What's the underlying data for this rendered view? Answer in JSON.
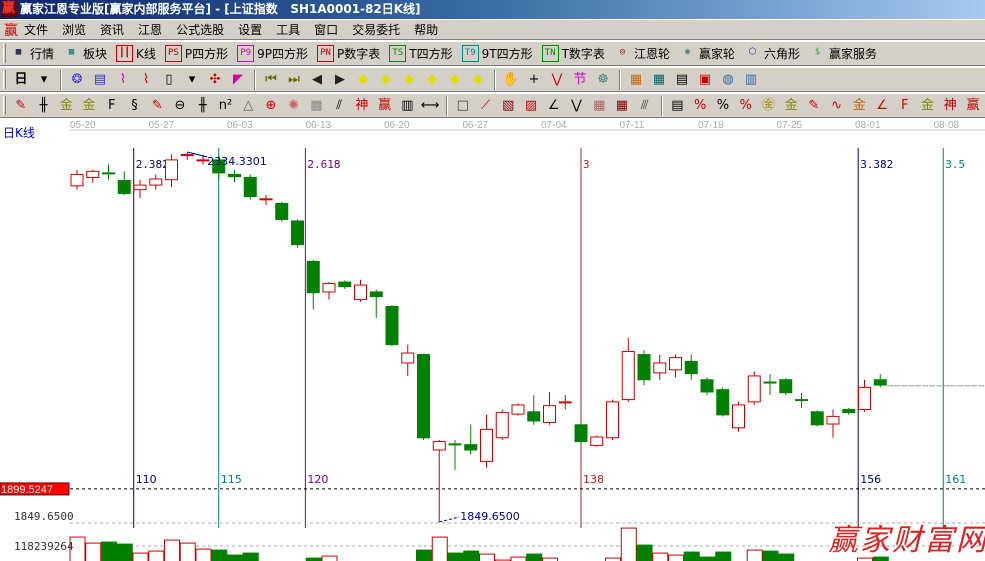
{
  "title": "赢家江恩专业版[赢家内部服务平台] - [上证指数   SH1A0001-82日K线]",
  "menu": {
    "logo": "赢",
    "items": [
      "文件",
      "浏览",
      "资讯",
      "江恩",
      "公式选股",
      "设置",
      "工具",
      "窗口",
      "交易委托",
      "帮助"
    ]
  },
  "toolbar1": [
    {
      "icon": "quote-grid-icon",
      "glyph": "▦",
      "color": "#003",
      "label": "行情"
    },
    {
      "icon": "blocks-icon",
      "glyph": "▩",
      "color": "#088",
      "label": "板块"
    },
    {
      "icon": "candles-icon",
      "glyph": "┃┃",
      "color": "#c00",
      "label": "K线"
    },
    {
      "icon": "ps-icon",
      "glyph": "PS",
      "color": "#c00",
      "label": "P四方形"
    },
    {
      "icon": "p9-icon",
      "glyph": "P9",
      "color": "#c0c",
      "label": "9P四方形"
    },
    {
      "icon": "pn-icon",
      "glyph": "PN",
      "color": "#c00",
      "label": "P数字表"
    },
    {
      "icon": "ts-icon",
      "glyph": "TS",
      "color": "#080",
      "label": "T四方形"
    },
    {
      "icon": "t9-icon",
      "glyph": "T9",
      "color": "#088",
      "label": "9T四方形"
    },
    {
      "icon": "tn-icon",
      "glyph": "TN",
      "color": "#080",
      "label": "T数字表"
    },
    {
      "icon": "gann-wheel-icon",
      "glyph": "◎",
      "color": "#800",
      "label": "江恩轮"
    },
    {
      "icon": "winner-wheel-icon",
      "glyph": "◉",
      "color": "#488",
      "label": "赢家轮"
    },
    {
      "icon": "hexagon-icon",
      "glyph": "⬡",
      "color": "#33c",
      "label": "六角形"
    },
    {
      "icon": "dollar-icon",
      "glyph": "$",
      "color": "#4a4",
      "label": "赢家服务"
    }
  ],
  "toolbar2": {
    "period": "日",
    "icons": [
      {
        "name": "period-dropdown-icon",
        "glyph": "▾",
        "color": "#000"
      },
      {
        "name": "sep"
      },
      {
        "name": "pattern-icon",
        "glyph": "❂",
        "color": "#33c"
      },
      {
        "name": "document-icon",
        "glyph": "▤",
        "color": "#33c"
      },
      {
        "name": "steps-3-icon",
        "glyph": "⌇",
        "color": "#c0c"
      },
      {
        "name": "steps-9-icon",
        "glyph": "⌇",
        "color": "#c00"
      },
      {
        "name": "candle-type-icon",
        "glyph": "▯",
        "color": "#000"
      },
      {
        "name": "candle-type-dropdown-icon",
        "glyph": "▾",
        "color": "#000"
      },
      {
        "name": "style-icon",
        "glyph": "✣",
        "color": "#c00"
      },
      {
        "name": "flag-icon",
        "glyph": "◤",
        "color": "#c0a"
      },
      {
        "name": "sep"
      },
      {
        "name": "first-icon",
        "glyph": "⏮",
        "color": "#660"
      },
      {
        "name": "last-icon",
        "glyph": "⏭",
        "color": "#660"
      },
      {
        "name": "prev-icon",
        "glyph": "◀",
        "color": "#222"
      },
      {
        "name": "next-icon",
        "glyph": "▶",
        "color": "#222"
      },
      {
        "name": "move-left-icon",
        "glyph": "◆",
        "color": "#dd0"
      },
      {
        "name": "move-right-icon",
        "glyph": "◆",
        "color": "#dd0"
      },
      {
        "name": "expand-h-icon",
        "glyph": "◆",
        "color": "#dd0"
      },
      {
        "name": "shrink-h-icon",
        "glyph": "◆",
        "color": "#dd0"
      },
      {
        "name": "expand-all-icon",
        "glyph": "◆",
        "color": "#dd0"
      },
      {
        "name": "expand-v-icon",
        "glyph": "◆",
        "color": "#dd0"
      },
      {
        "name": "sep"
      },
      {
        "name": "hand-icon",
        "glyph": "✋",
        "color": "#000"
      },
      {
        "name": "crosshair-icon",
        "glyph": "+",
        "color": "#000"
      },
      {
        "name": "zigzag-icon",
        "glyph": "⋁",
        "color": "#c00"
      },
      {
        "name": "node-icon",
        "glyph": "节",
        "color": "#c0c"
      },
      {
        "name": "brain-icon",
        "glyph": "☸",
        "color": "#488"
      },
      {
        "name": "sep"
      },
      {
        "name": "calendar-icon",
        "glyph": "▦",
        "color": "#c60"
      },
      {
        "name": "calculator-icon",
        "glyph": "▦",
        "color": "#066"
      },
      {
        "name": "report-icon",
        "glyph": "▤",
        "color": "#000"
      },
      {
        "name": "save-icon",
        "glyph": "▣",
        "color": "#c00"
      },
      {
        "name": "network-icon",
        "glyph": "◍",
        "color": "#36a"
      },
      {
        "name": "computer-icon",
        "glyph": "▥",
        "color": "#36a"
      }
    ]
  },
  "toolbar3": [
    {
      "name": "pen-icon",
      "glyph": "✎",
      "color": "#c00"
    },
    {
      "name": "parallel-lines-icon",
      "glyph": "╫",
      "color": "#000"
    },
    {
      "name": "gold-lines-icon",
      "glyph": "金",
      "color": "#880"
    },
    {
      "name": "gold-lines-2-icon",
      "glyph": "金",
      "color": "#880"
    },
    {
      "name": "f-lines-icon",
      "glyph": "F",
      "color": "#000"
    },
    {
      "name": "spiral-lines-icon",
      "glyph": "§",
      "color": "#000"
    },
    {
      "name": "pen-ruler-icon",
      "glyph": "✎",
      "color": "#c00"
    },
    {
      "name": "circle-ruler-icon",
      "glyph": "⊖",
      "color": "#000"
    },
    {
      "name": "grid-lines-icon",
      "glyph": "╫",
      "color": "#000"
    },
    {
      "name": "n-square-icon",
      "glyph": "n²",
      "color": "#000"
    },
    {
      "name": "triangle-icon",
      "glyph": "△",
      "color": "#666"
    },
    {
      "name": "target-icon",
      "glyph": "⊕",
      "color": "#c00"
    },
    {
      "name": "star-burst-icon",
      "glyph": "✺",
      "color": "#c66"
    },
    {
      "name": "web-icon",
      "glyph": "▩",
      "color": "#888"
    },
    {
      "name": "angle-lines-icon",
      "glyph": "⫽",
      "color": "#000"
    },
    {
      "name": "shen-icon",
      "glyph": "神",
      "color": "#c00"
    },
    {
      "name": "ying-icon",
      "glyph": "赢",
      "color": "#c00"
    },
    {
      "name": "ruler-123-icon",
      "glyph": "▥",
      "color": "#000"
    },
    {
      "name": "width-icon",
      "glyph": "⟷",
      "color": "#000"
    },
    {
      "name": "sep"
    },
    {
      "name": "box-icon",
      "glyph": "□",
      "color": "#444"
    },
    {
      "name": "fan-icon",
      "glyph": "⟋",
      "color": "#c00"
    },
    {
      "name": "fan-box-icon",
      "glyph": "▧",
      "color": "#800"
    },
    {
      "name": "fan-box-2-icon",
      "glyph": "▨",
      "color": "#c00"
    },
    {
      "name": "angle-fan-icon",
      "glyph": "∠",
      "color": "#000"
    },
    {
      "name": "v-lines-icon",
      "glyph": "⋁",
      "color": "#000"
    },
    {
      "name": "grid-box-icon",
      "glyph": "▦",
      "color": "#a66"
    },
    {
      "name": "grid-box-2-icon",
      "glyph": "▦",
      "color": "#800"
    },
    {
      "name": "hatch-icon",
      "glyph": "⫻",
      "color": "#444"
    },
    {
      "name": "sep"
    },
    {
      "name": "bars-icon",
      "glyph": "▤",
      "color": "#000"
    },
    {
      "name": "percent-line-icon",
      "glyph": "%",
      "color": "#c00"
    },
    {
      "name": "percent-icon",
      "glyph": "%",
      "color": "#000"
    },
    {
      "name": "percent-lines-icon",
      "glyph": "%",
      "color": "#c00"
    },
    {
      "name": "gold-circle-icon",
      "glyph": "㊎",
      "color": "#a80"
    },
    {
      "name": "gold-lines-3-icon",
      "glyph": "金",
      "color": "#880"
    },
    {
      "name": "pen-lines-icon",
      "glyph": "✎",
      "color": "#c00"
    },
    {
      "name": "wave-icon",
      "glyph": "∿",
      "color": "#c00"
    },
    {
      "name": "gold-red-icon",
      "glyph": "金",
      "color": "#c60"
    },
    {
      "name": "j-angle-icon",
      "glyph": "∠",
      "color": "#c00"
    },
    {
      "name": "f-angle-icon",
      "glyph": "F",
      "color": "#c00"
    },
    {
      "name": "gold-angle-icon",
      "glyph": "金",
      "color": "#880"
    },
    {
      "name": "shen-angle-icon",
      "glyph": "神",
      "color": "#c00"
    },
    {
      "name": "ying-angle-icon",
      "glyph": "赢",
      "color": "#c00"
    }
  ],
  "chart_label": "日K线",
  "watermark": "赢家财富网",
  "colors": {
    "up": "#cc0000",
    "down": "#008000",
    "axis_text": "#aaaaaa",
    "price_tag": "#ff0000"
  },
  "chart_data": {
    "type": "candlestick",
    "date_ticks": [
      "05-20",
      "05-27",
      "06-03",
      "06-13",
      "06-20",
      "06-27",
      "07-04",
      "07-11",
      "07-18",
      "07-25",
      "08-01",
      "08-08"
    ],
    "candles": [
      [
        2290,
        2311,
        2285,
        2305
      ],
      [
        2301,
        2311,
        2294,
        2309
      ],
      [
        2307,
        2318,
        2298,
        2306
      ],
      [
        2297,
        2309,
        2278,
        2280
      ],
      [
        2285,
        2298,
        2274,
        2291
      ],
      [
        2291,
        2305,
        2285,
        2299
      ],
      [
        2298,
        2331,
        2288,
        2324
      ],
      [
        2330,
        2334.33,
        2324,
        2331
      ],
      [
        2323,
        2331,
        2318,
        2324
      ],
      [
        2324,
        2331,
        2298,
        2307
      ],
      [
        2305,
        2311,
        2295,
        2302
      ],
      [
        2301,
        2305,
        2272,
        2276
      ],
      [
        2272,
        2278,
        2265,
        2273
      ],
      [
        2267,
        2269,
        2243,
        2246
      ],
      [
        2244,
        2246,
        2209,
        2213
      ],
      [
        2191,
        2193,
        2128,
        2150
      ],
      [
        2151,
        2164,
        2141,
        2162
      ],
      [
        2164,
        2166,
        2155,
        2158
      ],
      [
        2141,
        2167,
        2138,
        2160
      ],
      [
        2151,
        2154,
        2117,
        2145
      ],
      [
        2132,
        2134,
        2080,
        2082
      ],
      [
        2058,
        2082,
        2041,
        2071
      ],
      [
        2069,
        2070,
        1957,
        1960
      ],
      [
        1944,
        1957,
        1849.65,
        1955
      ],
      [
        1952,
        1957,
        1918,
        1951
      ],
      [
        1951,
        1977,
        1938,
        1944
      ],
      [
        1929,
        1990,
        1921,
        1971
      ],
      [
        1960,
        1997,
        1957,
        1993
      ],
      [
        1991,
        2005,
        1989,
        2003
      ],
      [
        1994,
        2016,
        1977,
        1982
      ],
      [
        1980,
        2020,
        1977,
        2002
      ],
      [
        2006,
        2016,
        1997,
        2007
      ],
      [
        1977,
        1981,
        1951,
        1955
      ],
      [
        1950,
        1963,
        1948,
        1961
      ],
      [
        1960,
        2010,
        1957,
        2007
      ],
      [
        2010,
        2091,
        2007,
        2073
      ],
      [
        2069,
        2075,
        2029,
        2036
      ],
      [
        2045,
        2069,
        2036,
        2058
      ],
      [
        2049,
        2069,
        2039,
        2065
      ],
      [
        2060,
        2069,
        2036,
        2044
      ],
      [
        2036,
        2039,
        2016,
        2020
      ],
      [
        2023,
        2026,
        1988,
        1990
      ],
      [
        1973,
        2007,
        1968,
        2003
      ],
      [
        2007,
        2047,
        2003,
        2041
      ],
      [
        2033,
        2043,
        2016,
        2032
      ],
      [
        2036,
        2038,
        2016,
        2019
      ],
      [
        2010,
        2019,
        1999,
        2009
      ],
      [
        1994,
        1996,
        1975,
        1977
      ],
      [
        1978,
        1997,
        1960,
        1988
      ],
      [
        1997,
        1999,
        1990,
        1993
      ],
      [
        1997,
        2036,
        1994,
        2026
      ],
      [
        2036,
        2043,
        2026,
        2029
      ]
    ],
    "candle_fields": [
      "open",
      "high",
      "low",
      "close"
    ],
    "volumes": [
      145,
      127,
      130,
      124,
      97,
      103,
      136,
      127,
      109,
      106,
      91,
      97,
      70,
      70,
      70,
      82,
      88,
      70,
      70,
      70,
      70,
      70,
      106,
      145,
      97,
      103,
      94,
      76,
      85,
      94,
      82,
      70,
      70,
      70,
      82,
      172,
      121,
      97,
      91,
      100,
      85,
      100,
      70,
      106,
      103,
      94,
      70,
      70,
      70,
      70,
      82,
      85
    ],
    "volume_unit": 1000000,
    "volume_tick": "118239264",
    "volume_tick_value": 118239264,
    "high_label": "2334.3301",
    "high_value": 2334.33,
    "low_label": "1849.6500",
    "low_value": 1849.65,
    "axis_low_label": "1849.6500",
    "current_price_label": "1899.5247",
    "current_price": 1899.5247,
    "projection_price": 2028,
    "gann_lines": [
      {
        "after_index": 3.6,
        "top": "2.382",
        "bottom": "110",
        "color": "#000080"
      },
      {
        "after_index": 9,
        "top": "",
        "bottom": "115",
        "color": "#008080"
      },
      {
        "after_index": 14.5,
        "top": "2.618",
        "bottom": "120",
        "color": "#800080"
      },
      {
        "after_index": 32,
        "top": "3",
        "bottom": "138",
        "color": "#b22222"
      },
      {
        "after_index": 49.6,
        "top": "3.382",
        "bottom": "156",
        "color": "#000080"
      },
      {
        "after_index": 55,
        "top": "3.5",
        "bottom": "161",
        "color": "#008080"
      }
    ]
  }
}
